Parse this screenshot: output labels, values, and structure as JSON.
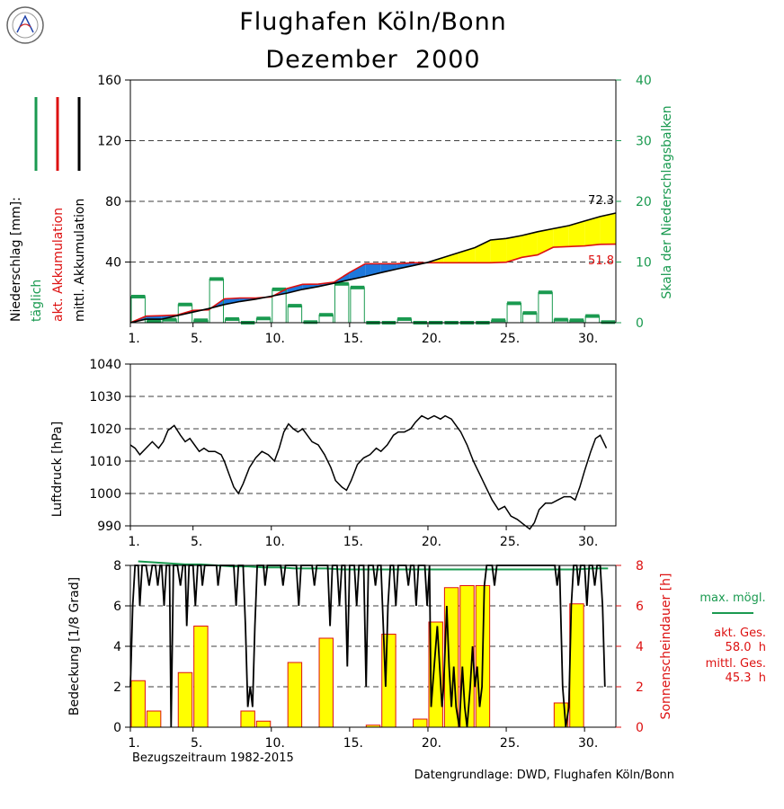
{
  "header": {
    "title": "Flughafen Köln/Bonn",
    "subtitle": "Dezember  2000"
  },
  "footer": {
    "reference_period": "Bezugszeitraum 1982-2015",
    "data_source": "Datengrundlage: DWD, Flughafen Köln/Bonn"
  },
  "colors": {
    "green": "#1a9a50",
    "red": "#dd1111",
    "black": "#000000",
    "yellow": "#ffff00",
    "blue": "#1e78dc",
    "bar_edge": "#dd1111"
  },
  "x_ticks": [
    "1.",
    "5.",
    "10.",
    "15.",
    "20.",
    "25.",
    "30."
  ],
  "chart_data": [
    {
      "type": "bar+area",
      "name": "precipitation",
      "legend": {
        "label": "Niederschlag [mm]:",
        "daily": "täglich",
        "actual_accum": "akt. Akkumulation",
        "mean_accum": "mittl. Akkumulation"
      },
      "ylabel_right": "Skala der Niederschlagsbalken",
      "ylim": [
        0,
        160
      ],
      "y_ticks": [
        "160",
        "120",
        "80",
        "40"
      ],
      "y2lim": [
        0,
        40
      ],
      "y2_ticks": [
        "40",
        "30",
        "20",
        "10",
        "0"
      ],
      "days": [
        1,
        2,
        3,
        4,
        5,
        6,
        7,
        8,
        9,
        10,
        11,
        12,
        13,
        14,
        15,
        16,
        17,
        18,
        19,
        20,
        21,
        22,
        23,
        24,
        25,
        26,
        27,
        28,
        29,
        30,
        31
      ],
      "daily_precip": [
        4.3,
        0.3,
        0.5,
        3.0,
        0.4,
        7.2,
        0.6,
        0.0,
        0.7,
        5.5,
        2.8,
        0.1,
        1.3,
        6.4,
        5.8,
        0,
        0,
        0.6,
        0,
        0,
        0,
        0,
        0,
        0.4,
        3.2,
        1.6,
        5.0,
        0.5,
        0.4,
        1.1,
        0.1
      ],
      "actual_accum": [
        4.3,
        4.6,
        5.1,
        8.1,
        8.5,
        15.7,
        16.3,
        16.3,
        17.0,
        22.5,
        25.3,
        25.4,
        26.7,
        33.1,
        38.9,
        38.9,
        38.9,
        39.5,
        39.5,
        39.5,
        39.5,
        39.5,
        39.5,
        39.9,
        43.1,
        44.7,
        49.7,
        50.2,
        50.6,
        51.7,
        51.8
      ],
      "mean_accum": [
        2.3,
        2.3,
        4.7,
        7.0,
        9.3,
        12.0,
        14.0,
        15.5,
        17.5,
        19.5,
        22.0,
        23.8,
        26.0,
        28.3,
        30.5,
        33.0,
        35.3,
        37.5,
        39.8,
        43.0,
        46.3,
        49.5,
        54.5,
        55.5,
        57.5,
        60.0,
        62.0,
        64.0,
        67.0,
        70.0,
        72.3
      ],
      "labels": {
        "mean_total": "72.3",
        "actual_total": "51.8"
      }
    },
    {
      "type": "line",
      "name": "pressure",
      "ylabel": "Luftdruck [hPa]",
      "ylim": [
        990,
        1040
      ],
      "y_ticks": [
        "1040",
        "1030",
        "1020",
        "1010",
        "1000",
        "990"
      ],
      "points": [
        [
          1.0,
          1015
        ],
        [
          1.3,
          1014
        ],
        [
          1.6,
          1012
        ],
        [
          2.0,
          1014
        ],
        [
          2.4,
          1016
        ],
        [
          2.8,
          1014
        ],
        [
          3.1,
          1016
        ],
        [
          3.4,
          1019.5
        ],
        [
          3.8,
          1021
        ],
        [
          4.2,
          1018
        ],
        [
          4.5,
          1016
        ],
        [
          4.8,
          1017
        ],
        [
          5.1,
          1015
        ],
        [
          5.4,
          1013
        ],
        [
          5.7,
          1014
        ],
        [
          6.0,
          1013
        ],
        [
          6.4,
          1013
        ],
        [
          6.8,
          1012
        ],
        [
          7.0,
          1010
        ],
        [
          7.3,
          1006
        ],
        [
          7.6,
          1002
        ],
        [
          7.9,
          1000
        ],
        [
          8.2,
          1003
        ],
        [
          8.6,
          1008
        ],
        [
          9.0,
          1011
        ],
        [
          9.4,
          1013
        ],
        [
          9.8,
          1012
        ],
        [
          10.2,
          1010
        ],
        [
          10.5,
          1014
        ],
        [
          10.8,
          1019
        ],
        [
          11.1,
          1021.5
        ],
        [
          11.4,
          1020
        ],
        [
          11.7,
          1019
        ],
        [
          12.0,
          1020
        ],
        [
          12.3,
          1018
        ],
        [
          12.6,
          1016
        ],
        [
          13.0,
          1015
        ],
        [
          13.4,
          1012
        ],
        [
          13.8,
          1008
        ],
        [
          14.1,
          1004
        ],
        [
          14.5,
          1002
        ],
        [
          14.8,
          1001
        ],
        [
          15.1,
          1004
        ],
        [
          15.5,
          1009
        ],
        [
          15.9,
          1011
        ],
        [
          16.3,
          1012
        ],
        [
          16.7,
          1014
        ],
        [
          17.0,
          1013
        ],
        [
          17.4,
          1015
        ],
        [
          17.8,
          1018
        ],
        [
          18.1,
          1019
        ],
        [
          18.5,
          1019
        ],
        [
          18.9,
          1020
        ],
        [
          19.2,
          1022
        ],
        [
          19.6,
          1024
        ],
        [
          20.0,
          1023
        ],
        [
          20.4,
          1024
        ],
        [
          20.8,
          1023
        ],
        [
          21.1,
          1024
        ],
        [
          21.5,
          1023
        ],
        [
          21.8,
          1021
        ],
        [
          22.1,
          1019
        ],
        [
          22.5,
          1015
        ],
        [
          22.9,
          1010
        ],
        [
          23.3,
          1006
        ],
        [
          23.7,
          1002
        ],
        [
          24.1,
          998
        ],
        [
          24.5,
          995
        ],
        [
          24.9,
          996
        ],
        [
          25.3,
          993
        ],
        [
          25.7,
          992
        ],
        [
          26.1,
          990.5
        ],
        [
          26.5,
          989
        ],
        [
          26.8,
          991
        ],
        [
          27.1,
          995
        ],
        [
          27.5,
          997
        ],
        [
          27.9,
          997
        ],
        [
          28.3,
          998
        ],
        [
          28.7,
          999
        ],
        [
          29.1,
          999
        ],
        [
          29.4,
          998
        ],
        [
          29.7,
          1002
        ],
        [
          30.0,
          1007
        ],
        [
          30.4,
          1013
        ],
        [
          30.7,
          1017
        ],
        [
          31.0,
          1018
        ],
        [
          31.4,
          1014
        ]
      ]
    },
    {
      "type": "bar+line",
      "name": "cloud_sunshine",
      "ylabel": "Bedeckung [1/8 Grad]",
      "ylabel_right": "Sonnenscheindauer [h]",
      "ylim": [
        0,
        8
      ],
      "y_ticks": [
        "8",
        "6",
        "4",
        "2",
        "0"
      ],
      "y2lim": [
        0,
        8
      ],
      "y2_ticks": [
        "8",
        "6",
        "4",
        "2",
        "0"
      ],
      "legend": {
        "max_possible": "max. mögl.",
        "actual_total_label": "akt. Ges.",
        "actual_total_value": "58.0  h",
        "mean_total_label": "mittl. Ges.",
        "mean_total_value": "45.3  h"
      },
      "days": [
        1,
        2,
        3,
        4,
        5,
        6,
        7,
        8,
        9,
        10,
        11,
        12,
        13,
        14,
        15,
        16,
        17,
        18,
        19,
        20,
        21,
        22,
        23,
        24,
        25,
        26,
        27,
        28,
        29,
        30,
        31
      ],
      "sunshine": [
        2.3,
        0.8,
        0,
        2.7,
        5.0,
        0,
        0,
        0.8,
        0.3,
        0,
        3.2,
        0,
        4.4,
        0,
        0,
        0.1,
        4.6,
        0,
        0.4,
        5.2,
        6.9,
        7.0,
        7.0,
        0,
        0,
        0,
        0,
        1.2,
        6.1,
        0,
        0
      ],
      "max_possible": [
        8.2,
        8.15,
        8.1,
        8.05,
        8.05,
        8.0,
        7.95,
        7.95,
        7.9,
        7.9,
        7.85,
        7.85,
        7.85,
        7.8,
        7.8,
        7.8,
        7.8,
        7.8,
        7.8,
        7.8,
        7.8,
        7.8,
        7.8,
        7.8,
        7.8,
        7.8,
        7.8,
        7.8,
        7.8,
        7.85,
        7.85
      ],
      "cloud_cover": [
        [
          1.0,
          2
        ],
        [
          1.15,
          6
        ],
        [
          1.3,
          8
        ],
        [
          1.5,
          8
        ],
        [
          1.6,
          6
        ],
        [
          1.75,
          8
        ],
        [
          2.0,
          8
        ],
        [
          2.2,
          7
        ],
        [
          2.4,
          8
        ],
        [
          2.6,
          8
        ],
        [
          2.75,
          7
        ],
        [
          2.9,
          8
        ],
        [
          3.0,
          8
        ],
        [
          3.15,
          6
        ],
        [
          3.3,
          8
        ],
        [
          3.5,
          8
        ],
        [
          3.6,
          0
        ],
        [
          3.75,
          8
        ],
        [
          4.0,
          8
        ],
        [
          4.2,
          7
        ],
        [
          4.35,
          8
        ],
        [
          4.5,
          8
        ],
        [
          4.6,
          5
        ],
        [
          4.75,
          8
        ],
        [
          5.0,
          8
        ],
        [
          5.15,
          6
        ],
        [
          5.3,
          8
        ],
        [
          5.5,
          8
        ],
        [
          5.6,
          7
        ],
        [
          5.75,
          8
        ],
        [
          6.5,
          8
        ],
        [
          6.6,
          7
        ],
        [
          6.75,
          8
        ],
        [
          7.6,
          8
        ],
        [
          7.75,
          6
        ],
        [
          7.9,
          8
        ],
        [
          8.2,
          8
        ],
        [
          8.35,
          5
        ],
        [
          8.5,
          1
        ],
        [
          8.65,
          2
        ],
        [
          8.8,
          1
        ],
        [
          8.95,
          5
        ],
        [
          9.1,
          8
        ],
        [
          9.5,
          8
        ],
        [
          9.6,
          7
        ],
        [
          9.75,
          8
        ],
        [
          10.6,
          8
        ],
        [
          10.75,
          7
        ],
        [
          10.9,
          8
        ],
        [
          11.6,
          8
        ],
        [
          11.75,
          6
        ],
        [
          11.9,
          8
        ],
        [
          12.6,
          8
        ],
        [
          12.75,
          7
        ],
        [
          12.9,
          8
        ],
        [
          13.6,
          8
        ],
        [
          13.75,
          5
        ],
        [
          13.9,
          8
        ],
        [
          14.2,
          8
        ],
        [
          14.35,
          6
        ],
        [
          14.5,
          8
        ],
        [
          14.7,
          8
        ],
        [
          14.85,
          3
        ],
        [
          15.0,
          8
        ],
        [
          15.3,
          8
        ],
        [
          15.45,
          6
        ],
        [
          15.6,
          8
        ],
        [
          15.9,
          8
        ],
        [
          16.05,
          2
        ],
        [
          16.2,
          8
        ],
        [
          16.5,
          8
        ],
        [
          16.65,
          7
        ],
        [
          16.8,
          8
        ],
        [
          17.0,
          8
        ],
        [
          17.15,
          5
        ],
        [
          17.3,
          2
        ],
        [
          17.45,
          6
        ],
        [
          17.6,
          8
        ],
        [
          17.8,
          8
        ],
        [
          17.95,
          6
        ],
        [
          18.1,
          8
        ],
        [
          18.6,
          8
        ],
        [
          18.75,
          7
        ],
        [
          18.9,
          8
        ],
        [
          19.1,
          8
        ],
        [
          19.25,
          6
        ],
        [
          19.4,
          8
        ],
        [
          19.8,
          8
        ],
        [
          19.95,
          6
        ],
        [
          20.1,
          8
        ],
        [
          20.2,
          1
        ],
        [
          20.4,
          3
        ],
        [
          20.6,
          5
        ],
        [
          20.75,
          3
        ],
        [
          20.9,
          1
        ],
        [
          21.0,
          2
        ],
        [
          21.2,
          6
        ],
        [
          21.35,
          3
        ],
        [
          21.5,
          1
        ],
        [
          21.65,
          3
        ],
        [
          21.8,
          1
        ],
        [
          22.0,
          0
        ],
        [
          22.2,
          3
        ],
        [
          22.35,
          1
        ],
        [
          22.5,
          0
        ],
        [
          22.7,
          2
        ],
        [
          22.85,
          4
        ],
        [
          23.0,
          2
        ],
        [
          23.15,
          3
        ],
        [
          23.3,
          1
        ],
        [
          23.45,
          2
        ],
        [
          23.6,
          7
        ],
        [
          23.75,
          8
        ],
        [
          24.1,
          8
        ],
        [
          24.25,
          7
        ],
        [
          24.4,
          8
        ],
        [
          28.1,
          8
        ],
        [
          28.25,
          7
        ],
        [
          28.4,
          8
        ],
        [
          28.6,
          2
        ],
        [
          28.8,
          0
        ],
        [
          29.0,
          1
        ],
        [
          29.15,
          6
        ],
        [
          29.3,
          8
        ],
        [
          29.5,
          8
        ],
        [
          29.6,
          7
        ],
        [
          29.75,
          8
        ],
        [
          30.0,
          8
        ],
        [
          30.15,
          6
        ],
        [
          30.3,
          8
        ],
        [
          30.5,
          8
        ],
        [
          30.65,
          7
        ],
        [
          30.8,
          8
        ],
        [
          31.0,
          8
        ],
        [
          31.15,
          6
        ],
        [
          31.3,
          2
        ]
      ]
    }
  ]
}
